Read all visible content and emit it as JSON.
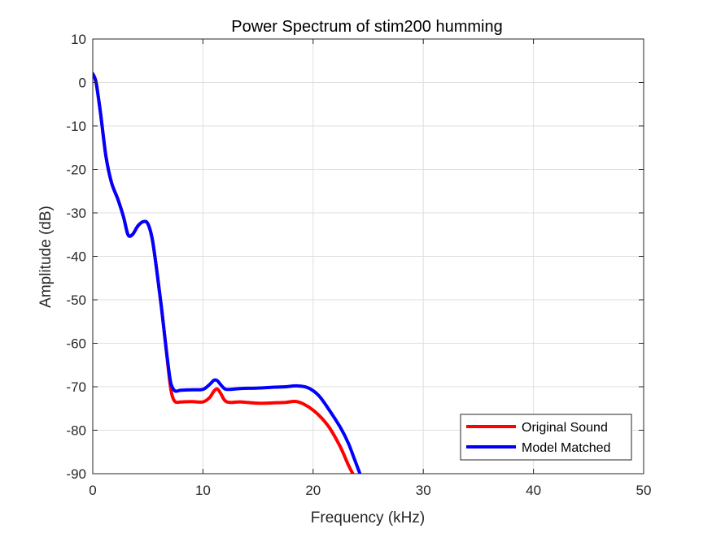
{
  "chart_data": {
    "type": "line",
    "title": "Power Spectrum of stim200 humming",
    "xlabel": "Frequency (kHz)",
    "ylabel": "Amplitude (dB)",
    "xlim": [
      0,
      50
    ],
    "ylim": [
      -90,
      10
    ],
    "xticks": [
      "0",
      "10",
      "20",
      "30",
      "40",
      "50"
    ],
    "yticks": [
      "10",
      "0",
      "-10",
      "-20",
      "-30",
      "-40",
      "-50",
      "-60",
      "-70",
      "-80",
      "-90"
    ],
    "grid": true,
    "legend_position": "bottom-right",
    "series": [
      {
        "name": "Original Sound",
        "color": "#ff0000",
        "x": [
          0,
          0.3,
          0.7,
          1.2,
          1.7,
          2.3,
          2.8,
          3.2,
          3.6,
          4.1,
          4.6,
          5.0,
          5.4,
          5.8,
          6.2,
          6.6,
          7.0,
          7.2,
          7.5,
          8.0,
          9.0,
          10.0,
          10.6,
          11.0,
          11.3,
          11.6,
          12.0,
          12.5,
          13.5,
          15.0,
          16.5,
          17.5,
          18.5,
          19.5,
          20.5,
          21.5,
          22.5,
          23.2,
          23.8,
          24.2
        ],
        "y": [
          2,
          0,
          -7,
          -17,
          -23,
          -27,
          -31,
          -35,
          -35,
          -33,
          -32,
          -32.5,
          -36,
          -43,
          -51,
          -60,
          -69,
          -72,
          -73.5,
          -73.5,
          -73.4,
          -73.5,
          -72.5,
          -71,
          -70.5,
          -71.5,
          -73.2,
          -73.6,
          -73.5,
          -73.8,
          -73.7,
          -73.6,
          -73.4,
          -74.5,
          -76.5,
          -79.5,
          -84,
          -88,
          -91,
          -93
        ]
      },
      {
        "name": "Model Matched",
        "color": "#0000ff",
        "x": [
          0,
          0.3,
          0.7,
          1.2,
          1.7,
          2.3,
          2.8,
          3.2,
          3.6,
          4.1,
          4.6,
          5.0,
          5.4,
          5.8,
          6.2,
          6.6,
          7.0,
          7.2,
          7.5,
          8.0,
          9.0,
          10.0,
          10.6,
          11.0,
          11.3,
          11.6,
          12.0,
          12.5,
          13.5,
          15.0,
          16.5,
          17.5,
          18.5,
          19.5,
          20.5,
          21.5,
          22.5,
          23.2,
          23.8,
          24.4
        ],
        "y": [
          2,
          0,
          -7,
          -17,
          -23,
          -27,
          -31,
          -35,
          -35,
          -33,
          -32,
          -32.5,
          -36,
          -43,
          -51,
          -60,
          -68,
          -70,
          -71,
          -70.8,
          -70.7,
          -70.6,
          -69.5,
          -68.5,
          -68.6,
          -69.5,
          -70.5,
          -70.6,
          -70.4,
          -70.3,
          -70.1,
          -70,
          -69.8,
          -70.2,
          -72,
          -75.5,
          -79.5,
          -83,
          -87,
          -91
        ]
      }
    ]
  }
}
